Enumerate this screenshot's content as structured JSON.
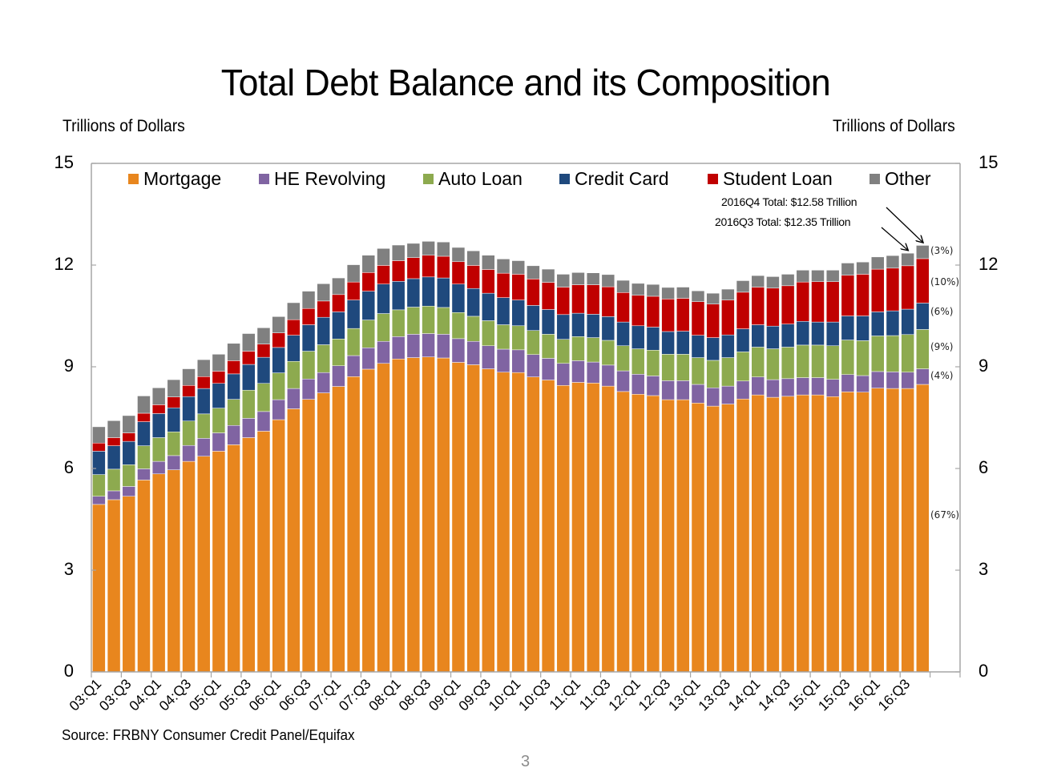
{
  "chart_data": {
    "type": "bar",
    "stacked": true,
    "title": "Total Debt Balance and its Composition",
    "ylabel_left": "Trillions of Dollars",
    "ylabel_right": "Trillions of Dollars",
    "ylim": [
      0,
      15
    ],
    "yticks": [
      "0",
      "3",
      "6",
      "9",
      "12",
      "15"
    ],
    "yticks_values": [
      0,
      3,
      6,
      9,
      12,
      15
    ],
    "legend_position": "top",
    "categories": [
      "03:Q1",
      "03:Q2",
      "03:Q3",
      "03:Q4",
      "04:Q1",
      "04:Q2",
      "04:Q3",
      "04:Q4",
      "05:Q1",
      "05:Q2",
      "05:Q3",
      "05:Q4",
      "06:Q1",
      "06:Q2",
      "06:Q3",
      "06:Q4",
      "07:Q1",
      "07:Q2",
      "07:Q3",
      "07:Q4",
      "08:Q1",
      "08:Q2",
      "08:Q3",
      "08:Q4",
      "09:Q1",
      "09:Q2",
      "09:Q3",
      "09:Q4",
      "10:Q1",
      "10:Q2",
      "10:Q3",
      "10:Q4",
      "11:Q1",
      "11:Q2",
      "11:Q3",
      "11:Q4",
      "12:Q1",
      "12:Q2",
      "12:Q3",
      "12:Q4",
      "13:Q1",
      "13:Q2",
      "13:Q3",
      "13:Q4",
      "14:Q1",
      "14:Q2",
      "14:Q3",
      "14:Q4",
      "15:Q1",
      "15:Q2",
      "15:Q3",
      "15:Q4",
      "16:Q1",
      "16:Q2",
      "16:Q3",
      "16:Q4"
    ],
    "xtick_labels": [
      "03:Q1",
      "03:Q3",
      "04:Q1",
      "04:Q3",
      "05:Q1",
      "05:Q3",
      "06:Q1",
      "06:Q3",
      "07:Q1",
      "07:Q3",
      "08:Q1",
      "08:Q3",
      "09:Q1",
      "09:Q3",
      "10:Q1",
      "10:Q3",
      "11:Q1",
      "11:Q3",
      "12:Q1",
      "12:Q3",
      "13:Q1",
      "13:Q3",
      "14:Q1",
      "14:Q3",
      "15:Q1",
      "15:Q3",
      "16:Q1",
      "16:Q3"
    ],
    "series": [
      {
        "name": "Mortgage",
        "color": "#E8861E",
        "values": [
          4.94,
          5.08,
          5.18,
          5.66,
          5.84,
          5.96,
          6.21,
          6.36,
          6.51,
          6.7,
          6.91,
          7.1,
          7.44,
          7.76,
          8.04,
          8.23,
          8.42,
          8.71,
          8.93,
          9.1,
          9.23,
          9.27,
          9.29,
          9.26,
          9.13,
          9.06,
          8.94,
          8.84,
          8.83,
          8.7,
          8.61,
          8.45,
          8.54,
          8.52,
          8.43,
          8.27,
          8.19,
          8.15,
          8.03,
          8.03,
          7.93,
          7.84,
          7.9,
          8.05,
          8.17,
          8.1,
          8.13,
          8.17,
          8.17,
          8.12,
          8.26,
          8.25,
          8.37,
          8.36,
          8.36,
          8.48
        ]
      },
      {
        "name": "HE Revolving",
        "color": "#8064A2",
        "values": [
          0.24,
          0.26,
          0.29,
          0.33,
          0.37,
          0.42,
          0.47,
          0.53,
          0.54,
          0.57,
          0.57,
          0.58,
          0.59,
          0.6,
          0.6,
          0.6,
          0.61,
          0.62,
          0.63,
          0.65,
          0.66,
          0.69,
          0.69,
          0.7,
          0.7,
          0.69,
          0.68,
          0.68,
          0.67,
          0.66,
          0.64,
          0.65,
          0.64,
          0.62,
          0.62,
          0.61,
          0.59,
          0.58,
          0.56,
          0.56,
          0.55,
          0.54,
          0.53,
          0.53,
          0.53,
          0.52,
          0.52,
          0.51,
          0.51,
          0.51,
          0.51,
          0.49,
          0.49,
          0.49,
          0.48,
          0.46
        ]
      },
      {
        "name": "Auto Loan",
        "color": "#8DAA4F",
        "values": [
          0.64,
          0.64,
          0.64,
          0.68,
          0.7,
          0.7,
          0.72,
          0.72,
          0.73,
          0.77,
          0.83,
          0.83,
          0.79,
          0.8,
          0.82,
          0.82,
          0.79,
          0.8,
          0.82,
          0.82,
          0.79,
          0.8,
          0.81,
          0.79,
          0.77,
          0.74,
          0.74,
          0.72,
          0.71,
          0.71,
          0.71,
          0.71,
          0.71,
          0.72,
          0.73,
          0.74,
          0.75,
          0.76,
          0.78,
          0.78,
          0.79,
          0.81,
          0.84,
          0.86,
          0.88,
          0.91,
          0.93,
          0.96,
          0.96,
          0.99,
          1.02,
          1.03,
          1.05,
          1.07,
          1.11,
          1.16
        ]
      },
      {
        "name": "Credit Card",
        "color": "#1F497D",
        "values": [
          0.69,
          0.69,
          0.69,
          0.71,
          0.71,
          0.71,
          0.72,
          0.75,
          0.73,
          0.75,
          0.76,
          0.77,
          0.75,
          0.77,
          0.78,
          0.81,
          0.8,
          0.84,
          0.85,
          0.87,
          0.84,
          0.84,
          0.86,
          0.87,
          0.84,
          0.82,
          0.81,
          0.8,
          0.76,
          0.74,
          0.73,
          0.73,
          0.69,
          0.69,
          0.7,
          0.7,
          0.68,
          0.68,
          0.67,
          0.68,
          0.66,
          0.67,
          0.67,
          0.68,
          0.66,
          0.67,
          0.68,
          0.7,
          0.68,
          0.7,
          0.71,
          0.73,
          0.71,
          0.73,
          0.75,
          0.78
        ]
      },
      {
        "name": "Student Loan",
        "color": "#C00000",
        "values": [
          0.24,
          0.24,
          0.25,
          0.25,
          0.26,
          0.32,
          0.33,
          0.35,
          0.36,
          0.39,
          0.39,
          0.39,
          0.43,
          0.46,
          0.48,
          0.48,
          0.51,
          0.53,
          0.55,
          0.55,
          0.61,
          0.62,
          0.64,
          0.64,
          0.66,
          0.68,
          0.7,
          0.72,
          0.76,
          0.78,
          0.8,
          0.81,
          0.84,
          0.87,
          0.88,
          0.87,
          0.9,
          0.91,
          0.96,
          0.97,
          0.99,
          0.99,
          1.03,
          1.08,
          1.11,
          1.12,
          1.13,
          1.16,
          1.19,
          1.19,
          1.2,
          1.23,
          1.26,
          1.26,
          1.28,
          1.31
        ]
      },
      {
        "name": "Other",
        "color": "#808080",
        "values": [
          0.48,
          0.5,
          0.51,
          0.51,
          0.5,
          0.51,
          0.49,
          0.5,
          0.5,
          0.51,
          0.52,
          0.48,
          0.48,
          0.5,
          0.51,
          0.51,
          0.49,
          0.51,
          0.51,
          0.5,
          0.46,
          0.42,
          0.41,
          0.42,
          0.42,
          0.43,
          0.42,
          0.42,
          0.4,
          0.39,
          0.39,
          0.38,
          0.36,
          0.35,
          0.36,
          0.36,
          0.35,
          0.35,
          0.34,
          0.33,
          0.32,
          0.32,
          0.32,
          0.34,
          0.34,
          0.34,
          0.34,
          0.35,
          0.34,
          0.34,
          0.36,
          0.36,
          0.36,
          0.37,
          0.37,
          0.39
        ]
      }
    ],
    "composition_labels": [
      {
        "series": "Other",
        "text": "(3%)"
      },
      {
        "series": "Student Loan",
        "text": "(10%)"
      },
      {
        "series": "Credit Card",
        "text": "(6%)"
      },
      {
        "series": "Auto Loan",
        "text": "(9%)"
      },
      {
        "series": "HE Revolving",
        "text": "(4%)"
      },
      {
        "series": "Mortgage",
        "text": "(67%)"
      }
    ],
    "annotations": [
      {
        "text": "2016Q4 Total: $12.58 Trillion",
        "target": "16:Q4",
        "value": 12.58
      },
      {
        "text": "2016Q3 Total: $12.35 Trillion",
        "target": "16:Q3",
        "value": 12.35
      }
    ],
    "source": "Source: FRBNY Consumer Credit Panel/Equifax"
  },
  "page": {
    "number": "3"
  },
  "colors": {
    "axis": "#A6A6A6",
    "page_number": "#8C8C8C"
  }
}
